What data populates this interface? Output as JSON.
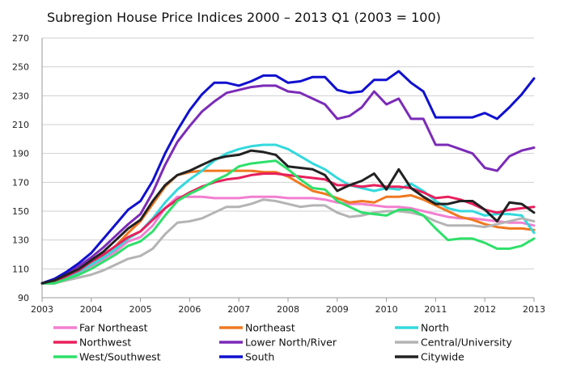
{
  "chart_data": {
    "type": "line",
    "title": "Subregion House Price Indices 2000 – 2013 Q1  (2003 = 100)",
    "xlabel": "",
    "ylabel": "",
    "xlim": [
      2003,
      2013
    ],
    "ylim": [
      90,
      270
    ],
    "xticks": [
      "2003",
      "2004",
      "2005",
      "2006",
      "2007",
      "2008",
      "2009",
      "2010",
      "2011",
      "2012",
      "2013"
    ],
    "yticks": [
      "90",
      "110",
      "130",
      "150",
      "170",
      "190",
      "210",
      "230",
      "250",
      "270"
    ],
    "grid": "horizontal",
    "legend_position": "bottom",
    "x": [
      2003.0,
      2003.25,
      2003.5,
      2003.75,
      2004.0,
      2004.25,
      2004.5,
      2004.75,
      2005.0,
      2005.25,
      2005.5,
      2005.75,
      2006.0,
      2006.25,
      2006.5,
      2006.75,
      2007.0,
      2007.25,
      2007.5,
      2007.75,
      2008.0,
      2008.25,
      2008.5,
      2008.75,
      2009.0,
      2009.25,
      2009.5,
      2009.75,
      2010.0,
      2010.25,
      2010.5,
      2010.75,
      2011.0,
      2011.25,
      2011.5,
      2011.75,
      2012.0,
      2012.25,
      2012.5,
      2012.75,
      2013.0
    ],
    "series": [
      {
        "name": "Far Northeast",
        "color": "#F27FD0",
        "values": [
          100,
          100,
          103,
          107,
          112,
          117,
          122,
          129,
          132,
          140,
          152,
          160,
          160,
          160,
          159,
          159,
          159,
          160,
          160,
          160,
          159,
          159,
          159,
          158,
          156,
          155,
          155,
          154,
          153,
          153,
          152,
          150,
          148,
          146,
          145,
          145,
          144,
          143,
          142,
          142,
          140
        ]
      },
      {
        "name": "Northeast",
        "color": "#F07820",
        "values": [
          100,
          101,
          104,
          108,
          113,
          119,
          126,
          135,
          143,
          155,
          167,
          175,
          177,
          178,
          178,
          178,
          178,
          178,
          177,
          177,
          174,
          169,
          164,
          162,
          159,
          156,
          157,
          156,
          160,
          160,
          161,
          158,
          154,
          150,
          146,
          144,
          141,
          139,
          138,
          138,
          137
        ]
      },
      {
        "name": "North",
        "color": "#33D9DD",
        "values": [
          100,
          101,
          104,
          108,
          113,
          118,
          124,
          131,
          136,
          145,
          156,
          165,
          172,
          178,
          185,
          190,
          193,
          195,
          196,
          196,
          193,
          188,
          183,
          179,
          173,
          168,
          166,
          164,
          166,
          165,
          169,
          164,
          157,
          152,
          150,
          150,
          147,
          148,
          148,
          147,
          135
        ]
      },
      {
        "name": "Northwest",
        "color": "#E8205C",
        "values": [
          100,
          101,
          105,
          109,
          115,
          120,
          126,
          132,
          136,
          144,
          152,
          158,
          163,
          167,
          170,
          172,
          173,
          175,
          176,
          176,
          175,
          174,
          173,
          172,
          168,
          168,
          167,
          168,
          167,
          167,
          166,
          163,
          159,
          160,
          158,
          155,
          151,
          149,
          151,
          152,
          153
        ]
      },
      {
        "name": "Lower North/River",
        "color": "#7B2BB8",
        "values": [
          100,
          103,
          107,
          112,
          118,
          125,
          133,
          141,
          148,
          163,
          182,
          198,
          209,
          219,
          226,
          232,
          234,
          236,
          237,
          237,
          233,
          232,
          228,
          224,
          214,
          216,
          222,
          233,
          224,
          228,
          214,
          214,
          196,
          196,
          193,
          190,
          180,
          178,
          188,
          192,
          194
        ]
      },
      {
        "name": "Central/University",
        "color": "#B4B4B4",
        "values": [
          100,
          100,
          102,
          104,
          106,
          109,
          113,
          117,
          119,
          124,
          134,
          142,
          143,
          145,
          149,
          153,
          153,
          155,
          158,
          157,
          155,
          153,
          154,
          154,
          149,
          146,
          147,
          149,
          150,
          150,
          149,
          147,
          143,
          140,
          140,
          140,
          139,
          141,
          143,
          145,
          143
        ]
      },
      {
        "name": "West/Southwest",
        "color": "#2EE06A",
        "values": [
          100,
          100,
          103,
          106,
          110,
          115,
          120,
          126,
          129,
          136,
          147,
          157,
          162,
          166,
          171,
          175,
          181,
          183,
          184,
          185,
          179,
          172,
          166,
          165,
          157,
          153,
          149,
          148,
          147,
          151,
          151,
          147,
          138,
          130,
          131,
          131,
          128,
          124,
          124,
          126,
          131
        ]
      },
      {
        "name": "South",
        "color": "#1010D0",
        "values": [
          100,
          103,
          108,
          114,
          121,
          131,
          141,
          151,
          157,
          171,
          190,
          206,
          220,
          231,
          239,
          239,
          237,
          240,
          244,
          244,
          239,
          240,
          243,
          243,
          234,
          232,
          233,
          241,
          241,
          247,
          239,
          233,
          215,
          215,
          215,
          215,
          218,
          214,
          222,
          231,
          242
        ]
      },
      {
        "name": "Citywide",
        "color": "#222222",
        "values": [
          100,
          102,
          106,
          110,
          116,
          122,
          130,
          138,
          144,
          157,
          168,
          175,
          178,
          182,
          186,
          188,
          189,
          192,
          191,
          189,
          181,
          180,
          179,
          175,
          164,
          168,
          171,
          176,
          165,
          179,
          166,
          160,
          155,
          155,
          157,
          157,
          151,
          143,
          156,
          155,
          149
        ]
      }
    ]
  }
}
